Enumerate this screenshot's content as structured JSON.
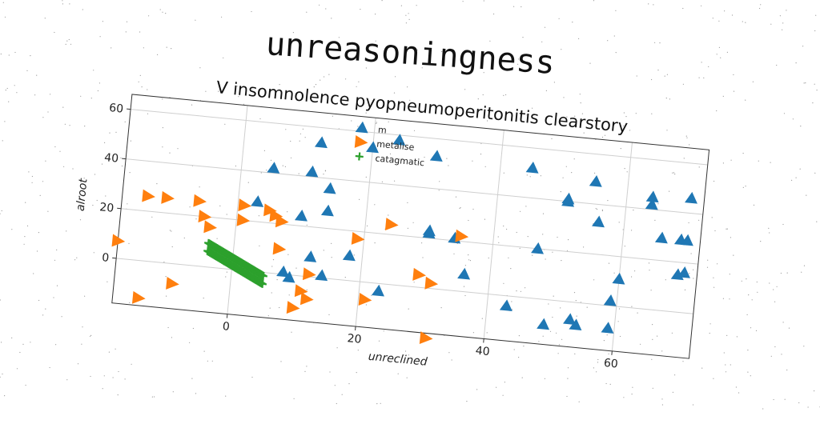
{
  "title": "unreasoningness",
  "chart_data": {
    "type": "scatter",
    "title": "V insomnolence pyopneumoperitonitis clearstory",
    "xlabel": "unreclined",
    "ylabel": "alroot",
    "xlim": [
      -18,
      72
    ],
    "ylim": [
      -18,
      66
    ],
    "xticks": [
      0,
      20,
      40,
      60
    ],
    "yticks": [
      0,
      20,
      40,
      60
    ],
    "grid": true,
    "legend": "top-center",
    "series": [
      {
        "name": "m",
        "marker": "triangle-up",
        "color": "#1f77b4",
        "points": [
          [
            3,
            28
          ],
          [
            5,
            42
          ],
          [
            10,
            24
          ],
          [
            11,
            42
          ],
          [
            12,
            54
          ],
          [
            14,
            36
          ],
          [
            14,
            27
          ],
          [
            20,
            54
          ],
          [
            24,
            58
          ],
          [
            30,
            22
          ],
          [
            30,
            23
          ],
          [
            30,
            53
          ],
          [
            34,
            21
          ],
          [
            12,
            8
          ],
          [
            8,
            1
          ],
          [
            9,
            -1
          ],
          [
            14,
            1
          ],
          [
            18,
            10
          ],
          [
            23,
            -3
          ],
          [
            36,
            7
          ],
          [
            43,
            -4
          ],
          [
            45,
            52
          ],
          [
            47,
            20
          ],
          [
            51,
            40
          ],
          [
            51,
            41
          ],
          [
            55,
            49
          ],
          [
            56,
            33
          ],
          [
            49,
            -10
          ],
          [
            53,
            -7
          ],
          [
            54,
            -9
          ],
          [
            59,
            2
          ],
          [
            59,
            -9
          ],
          [
            60,
            11
          ],
          [
            64,
            42
          ],
          [
            64,
            45
          ],
          [
            66,
            29
          ],
          [
            69,
            29
          ],
          [
            70,
            29
          ],
          [
            69,
            15
          ],
          [
            70,
            16
          ],
          [
            70,
            46
          ]
        ]
      },
      {
        "name": "metalise",
        "marker": "triangle-right",
        "color": "#ff7f0e",
        "points": [
          [
            -14,
            26
          ],
          [
            -11,
            26
          ],
          [
            -6,
            26
          ],
          [
            -5,
            20
          ],
          [
            -4,
            16
          ],
          [
            1,
            26
          ],
          [
            1,
            20
          ],
          [
            5,
            25
          ],
          [
            6,
            23
          ],
          [
            7,
            21
          ],
          [
            7,
            10
          ],
          [
            -18,
            7
          ],
          [
            -14,
            -15
          ],
          [
            -9,
            -8
          ],
          [
            10,
            -13
          ],
          [
            11,
            -6
          ],
          [
            12,
            -9
          ],
          [
            12,
            1
          ],
          [
            19,
            17
          ],
          [
            21,
            -7
          ],
          [
            24,
            24
          ],
          [
            29,
            5
          ],
          [
            31,
            2
          ],
          [
            35,
            22
          ],
          [
            31,
            -20
          ]
        ]
      },
      {
        "name": "catagmatic",
        "marker": "plus",
        "color": "#2ca02c",
        "line": [
          [
            -4,
            8
          ],
          [
            5,
            -3
          ]
        ]
      }
    ]
  }
}
